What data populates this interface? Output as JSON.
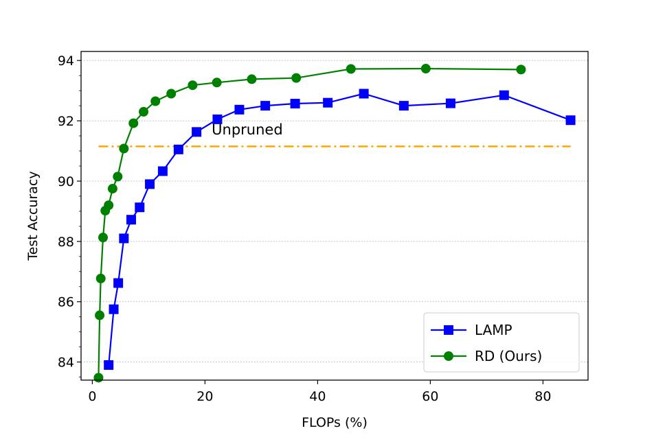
{
  "chart_data": {
    "type": "line",
    "title": "",
    "xlabel": "FLOPs (%)",
    "ylabel": "Test Accuracy",
    "xlim": [
      -2,
      88
    ],
    "ylim": [
      83.4,
      94.3
    ],
    "xticks": [
      0,
      20,
      40,
      60,
      80
    ],
    "yticks": [
      84,
      86,
      88,
      90,
      92,
      94
    ],
    "grid": "horizontal dotted",
    "legend": "bottom-right",
    "series": [
      {
        "name": "LAMP",
        "color": "#0000ff",
        "marker": "square",
        "x": [
          2.9,
          3.8,
          4.6,
          5.6,
          6.9,
          8.4,
          10.2,
          12.5,
          15.3,
          18.5,
          22.2,
          26.1,
          30.7,
          36.0,
          41.8,
          48.2,
          55.3,
          63.6,
          73.1,
          84.9
        ],
        "y": [
          83.9,
          85.75,
          86.62,
          88.1,
          88.72,
          89.13,
          89.9,
          90.33,
          91.05,
          91.63,
          92.05,
          92.37,
          92.5,
          92.57,
          92.6,
          92.9,
          92.5,
          92.58,
          92.85,
          92.02
        ]
      },
      {
        "name": "RD (Ours)",
        "color": "#008000",
        "marker": "circle",
        "x": [
          1.1,
          1.3,
          1.5,
          1.9,
          2.3,
          2.9,
          3.6,
          4.5,
          5.6,
          7.3,
          9.1,
          11.2,
          14.0,
          17.8,
          22.1,
          28.3,
          36.2,
          45.9,
          59.2,
          76.1
        ],
        "y": [
          83.48,
          85.55,
          86.77,
          88.13,
          89.02,
          89.2,
          89.75,
          90.15,
          91.08,
          91.92,
          92.3,
          92.65,
          92.9,
          93.18,
          93.27,
          93.38,
          93.42,
          93.72,
          93.73,
          93.7
        ]
      }
    ],
    "reference_line": {
      "label": "Unpruned",
      "value": 91.15,
      "x_range": [
        1.1,
        84.9
      ],
      "color": "#ffa500"
    }
  }
}
